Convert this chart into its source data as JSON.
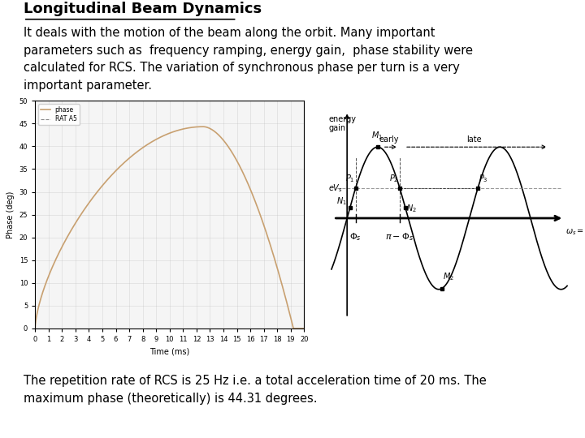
{
  "title": "Longitudinal Beam Dynamics",
  "subtitle": "It deals with the motion of the beam along the orbit. Many important\nparameters such as  frequency ramping, energy gain,  phase stability were\ncalculated for RCS. The variation of synchronous phase per turn is a very\nimportant parameter.",
  "footer": "The repetition rate of RCS is 25 Hz i.e. a total acceleration time of 20 ms. The\nmaximum phase (theoretically) is 44.31 degrees.",
  "left_plot": {
    "xlabel": "Time (ms)",
    "ylabel": "Phase (deg)",
    "xlim": [
      0,
      20
    ],
    "ylim": [
      0,
      50
    ],
    "yticks": [
      0,
      5,
      10,
      15,
      20,
      25,
      30,
      35,
      40,
      45,
      50
    ],
    "xticks": [
      0,
      1,
      2,
      3,
      4,
      5,
      6,
      7,
      8,
      9,
      10,
      11,
      12,
      13,
      14,
      15,
      16,
      17,
      18,
      19,
      20
    ],
    "line_color": "#c8a070",
    "legend": [
      "phase",
      "RAT A5"
    ]
  },
  "right_plot": {
    "ylabel": "energy\ngain",
    "eVs_label": "eV_s",
    "early_label": "early",
    "late_label": "late"
  },
  "bg_color": "#ffffff",
  "text_color": "#000000"
}
